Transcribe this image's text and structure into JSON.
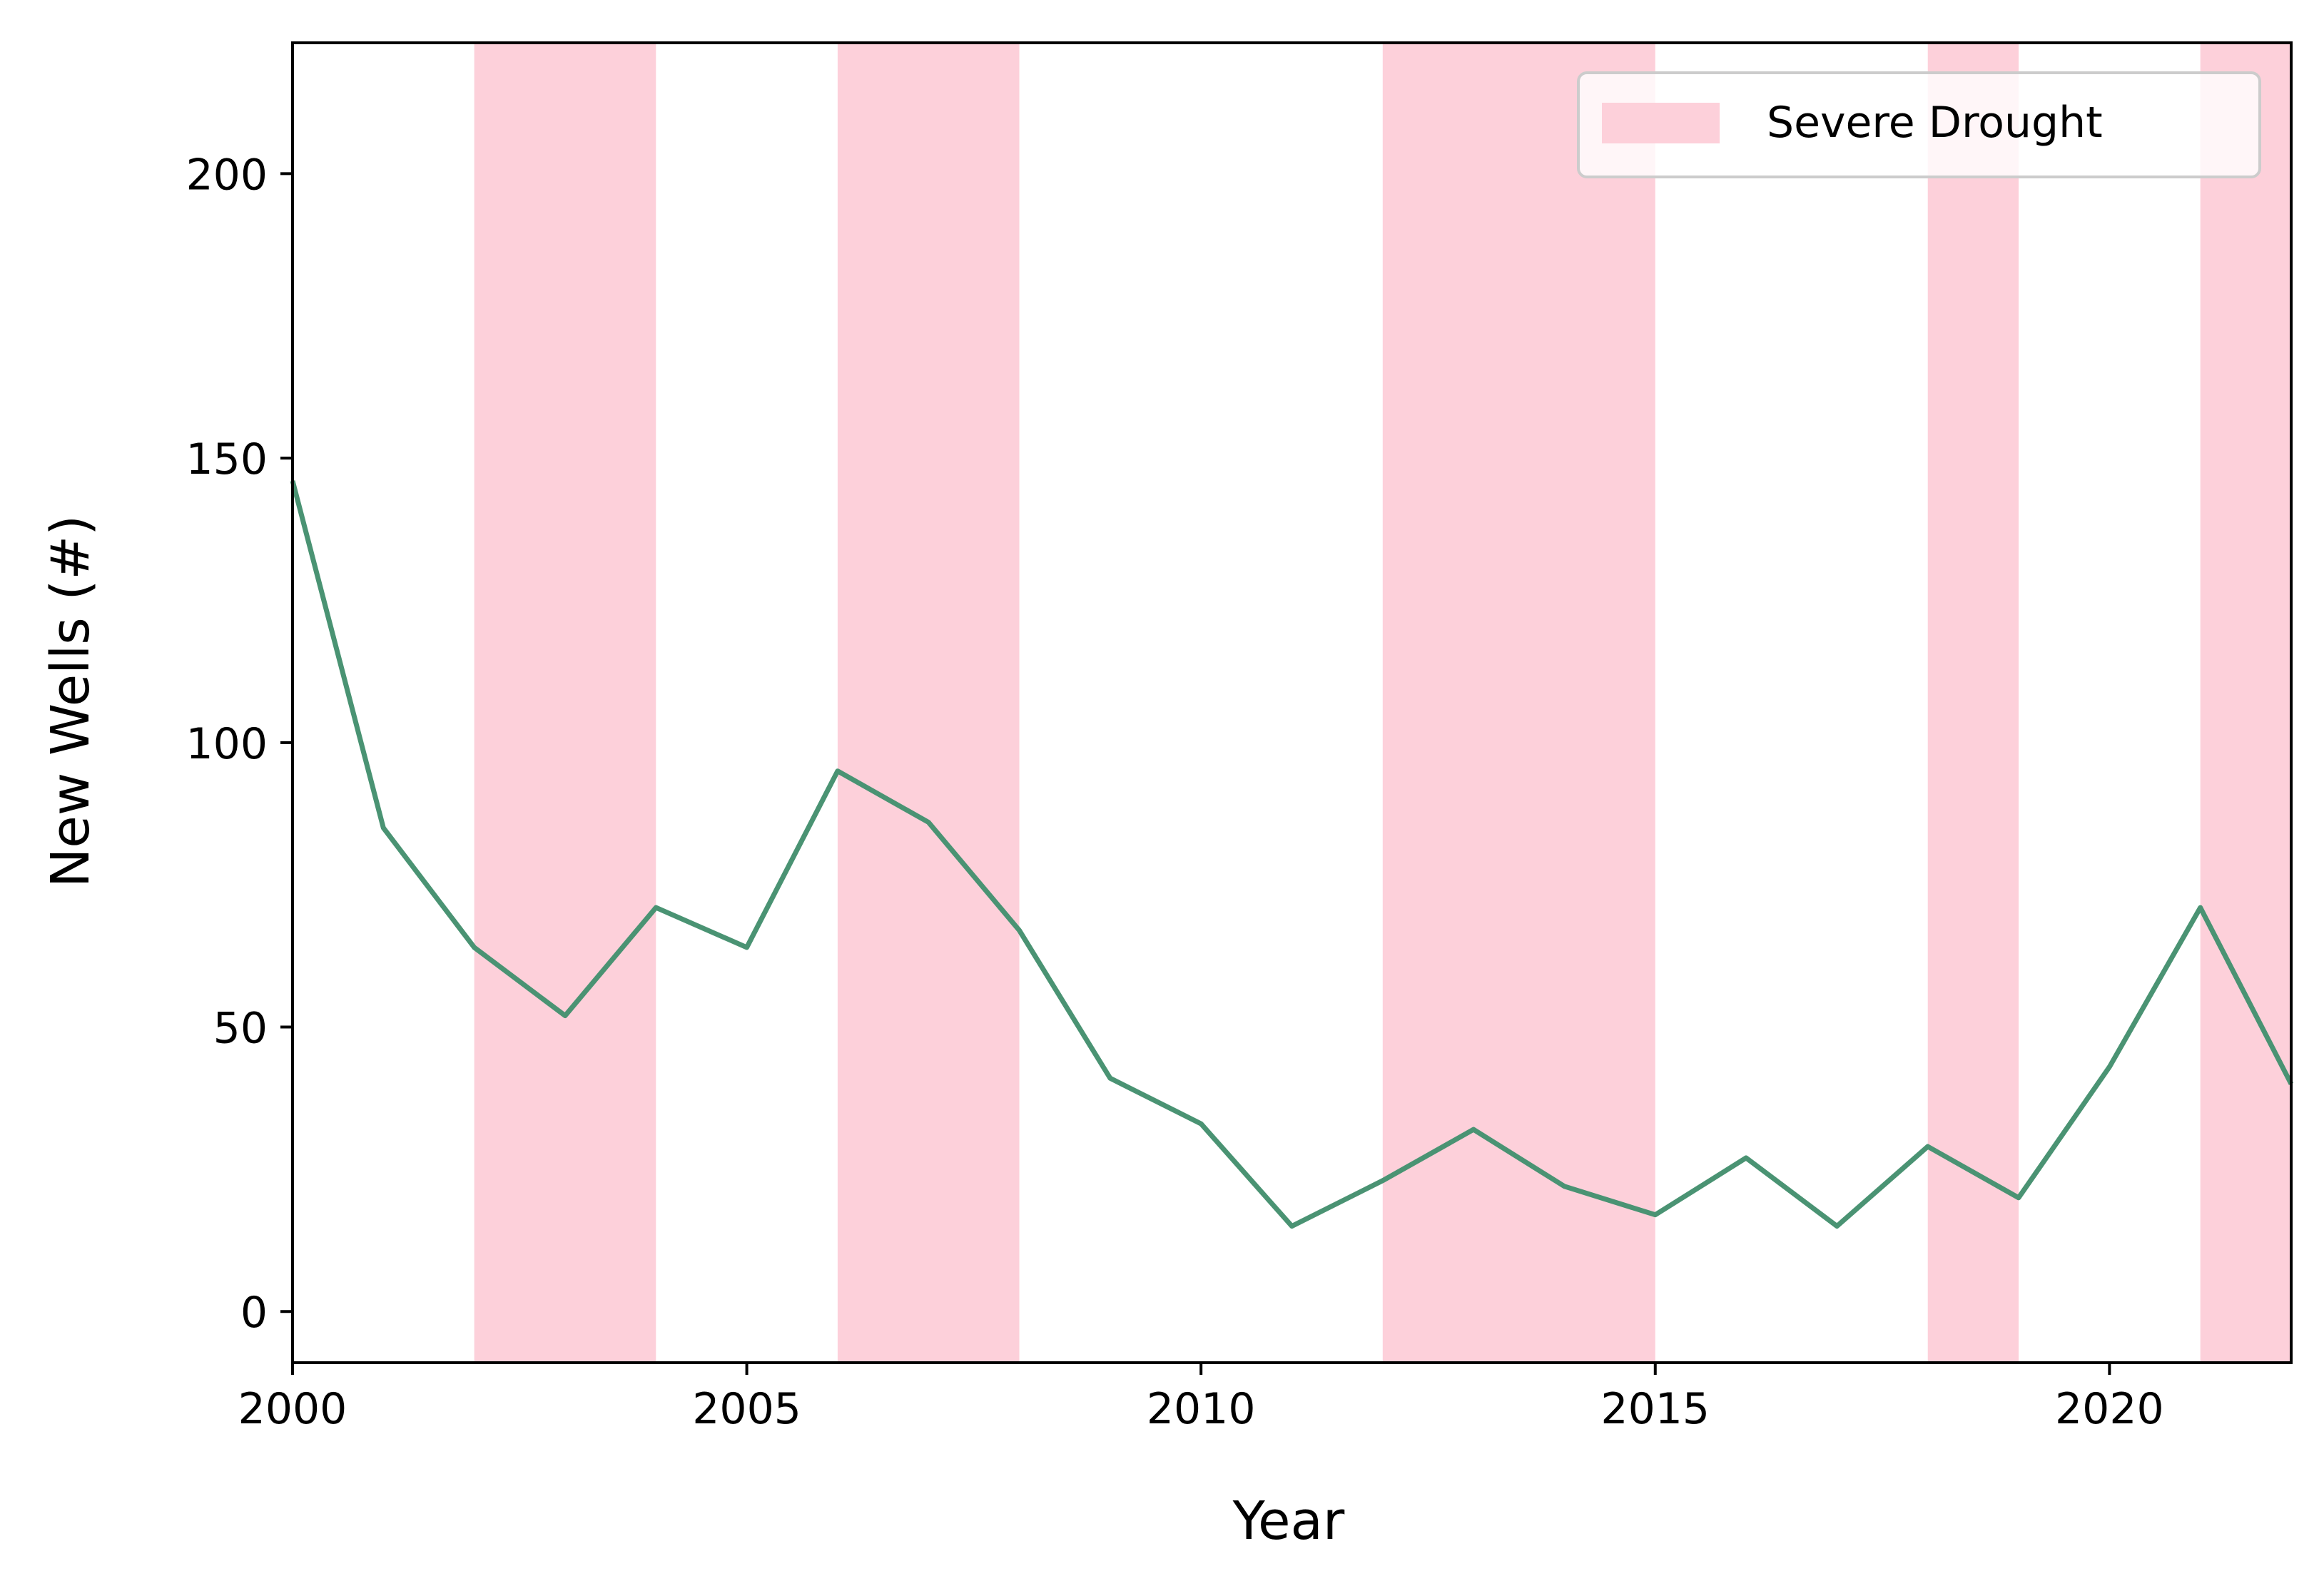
{
  "chart_data": {
    "type": "line",
    "title": "",
    "xlabel": "Year",
    "ylabel": "New Wells (#)",
    "xlim": [
      2000,
      2022
    ],
    "ylim": [
      -9,
      223
    ],
    "xticks": [
      2000,
      2005,
      2010,
      2015,
      2020
    ],
    "yticks": [
      0,
      50,
      100,
      150,
      200
    ],
    "grid": false,
    "legend_position": "top-right",
    "line_color": "#4a9373",
    "shade_color": "#fdd0da",
    "series": [
      {
        "x": [
          2000,
          2001,
          2002,
          2003,
          2004,
          2005,
          2006,
          2007,
          2008,
          2009,
          2010,
          2011,
          2012,
          2013,
          2014,
          2015,
          2016,
          2017,
          2018,
          2019,
          2020,
          2021,
          2022
        ],
        "values": [
          146,
          85,
          64,
          52,
          71,
          64,
          95,
          86,
          67,
          41,
          33,
          15,
          23,
          32,
          22,
          17,
          27,
          15,
          29,
          20,
          43,
          71,
          40
        ]
      }
    ],
    "shaded_regions": {
      "label": "Severe Drought",
      "ranges": [
        [
          2002,
          2004
        ],
        [
          2006,
          2008
        ],
        [
          2012,
          2015
        ],
        [
          2018,
          2019
        ],
        [
          2021,
          2022
        ]
      ]
    }
  }
}
